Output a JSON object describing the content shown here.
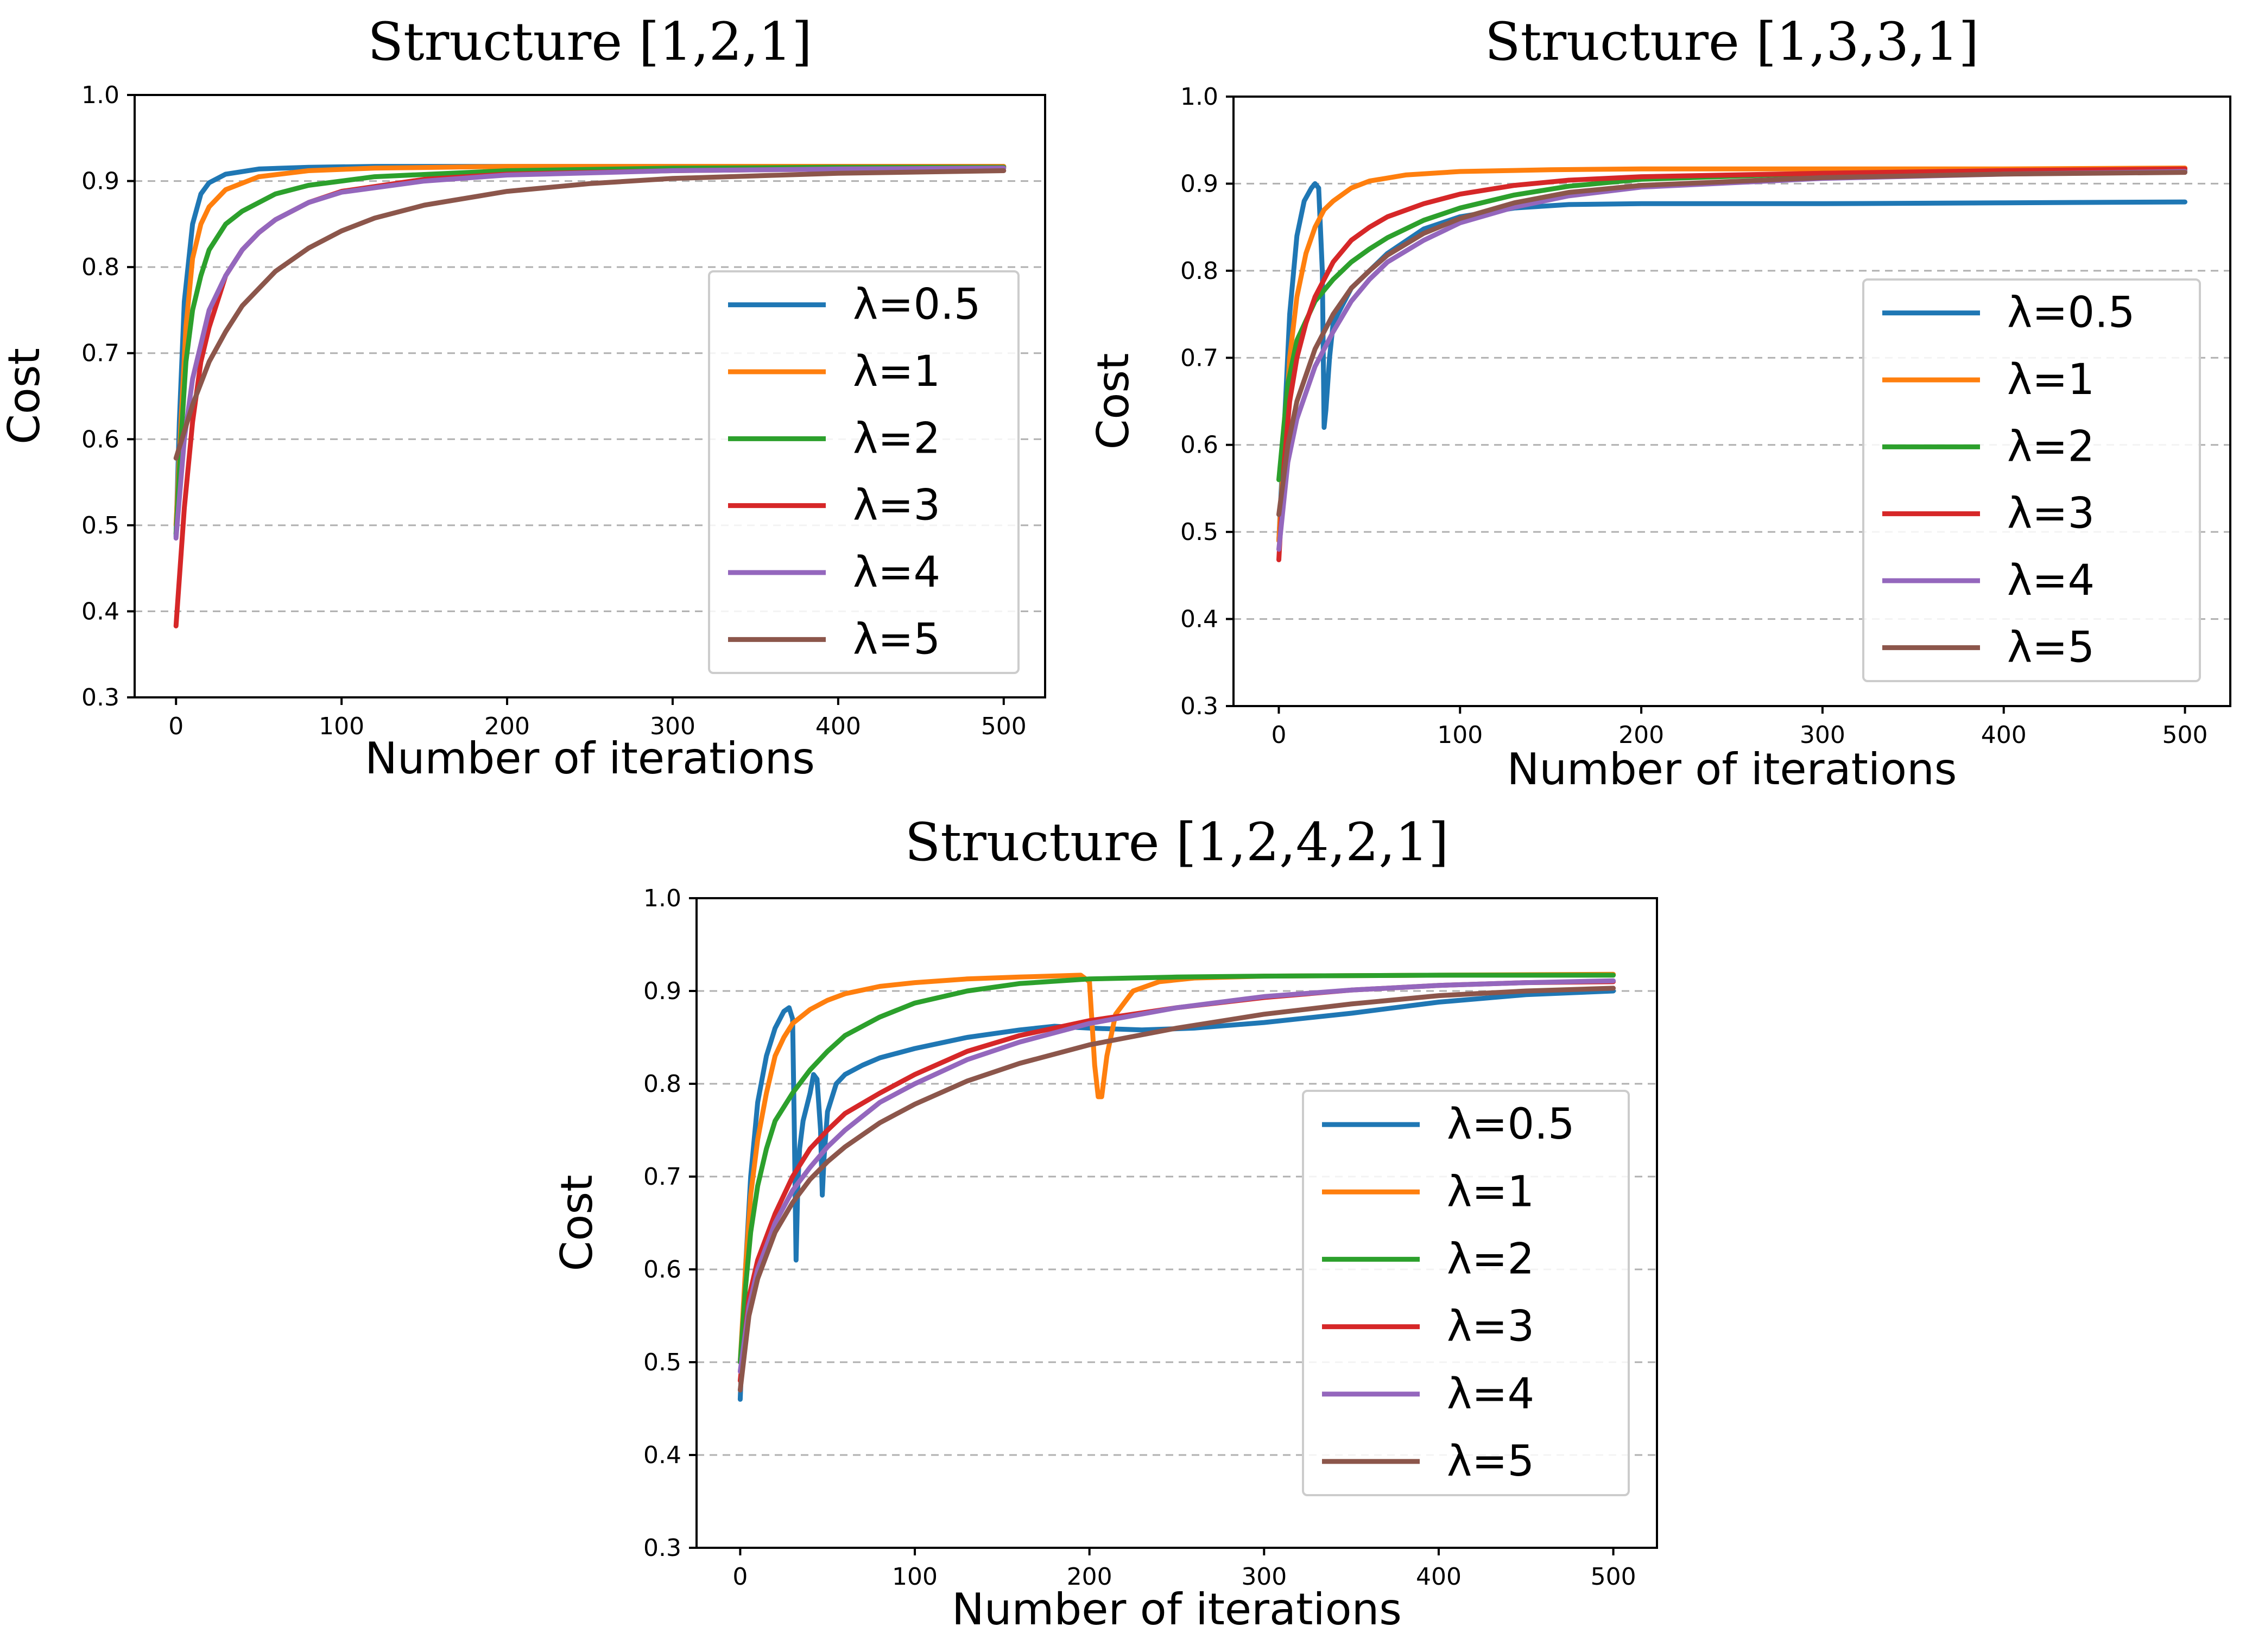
{
  "chart_data": [
    {
      "type": "line",
      "title": "Structure [1,2,1]",
      "xlabel": "Number of iterations",
      "ylabel": "Cost",
      "xlim": [
        -25,
        525
      ],
      "ylim": [
        0.3,
        1.0
      ],
      "xticks": [
        "0",
        "100",
        "200",
        "300",
        "400",
        "500"
      ],
      "yticks": [
        "0.3",
        "0.4",
        "0.5",
        "0.6",
        "0.7",
        "0.8",
        "0.9",
        "1.0"
      ],
      "grid": "horizontal-dashed",
      "legend_position": "center-right",
      "series": [
        {
          "name": "λ=0.5",
          "color": "#1f77b4",
          "x": [
            0,
            2,
            5,
            10,
            15,
            20,
            30,
            50,
            80,
            120,
            200,
            300,
            400,
            500
          ],
          "y": [
            0.487,
            0.62,
            0.76,
            0.85,
            0.885,
            0.898,
            0.908,
            0.914,
            0.916,
            0.917,
            0.917,
            0.917,
            0.917,
            0.917
          ]
        },
        {
          "name": "λ=1",
          "color": "#ff7f0e",
          "x": [
            0,
            3,
            6,
            10,
            15,
            20,
            30,
            50,
            80,
            120,
            200,
            300,
            400,
            500
          ],
          "y": [
            0.5,
            0.62,
            0.73,
            0.81,
            0.85,
            0.87,
            0.89,
            0.905,
            0.912,
            0.915,
            0.917,
            0.917,
            0.917,
            0.917
          ]
        },
        {
          "name": "λ=2",
          "color": "#2ca02c",
          "x": [
            0,
            3,
            6,
            10,
            15,
            20,
            30,
            40,
            60,
            80,
            120,
            200,
            300,
            400,
            500
          ],
          "y": [
            0.49,
            0.6,
            0.69,
            0.75,
            0.79,
            0.82,
            0.85,
            0.865,
            0.885,
            0.895,
            0.905,
            0.912,
            0.915,
            0.916,
            0.916
          ]
        },
        {
          "name": "λ=3",
          "color": "#d62728",
          "x": [
            0,
            5,
            10,
            15,
            20,
            30,
            40,
            50,
            60,
            80,
            100,
            150,
            200,
            300,
            400,
            500
          ],
          "y": [
            0.383,
            0.52,
            0.62,
            0.69,
            0.73,
            0.79,
            0.82,
            0.84,
            0.855,
            0.875,
            0.888,
            0.902,
            0.908,
            0.912,
            0.914,
            0.915
          ]
        },
        {
          "name": "λ=4",
          "color": "#9467bd",
          "x": [
            0,
            5,
            10,
            20,
            30,
            40,
            50,
            60,
            80,
            100,
            150,
            200,
            300,
            400,
            500
          ],
          "y": [
            0.485,
            0.6,
            0.67,
            0.75,
            0.79,
            0.82,
            0.84,
            0.855,
            0.875,
            0.887,
            0.9,
            0.907,
            0.912,
            0.914,
            0.915
          ]
        },
        {
          "name": "λ=5",
          "color": "#8c564b",
          "x": [
            0,
            10,
            20,
            30,
            40,
            50,
            60,
            80,
            100,
            120,
            150,
            200,
            250,
            300,
            400,
            500
          ],
          "y": [
            0.578,
            0.64,
            0.69,
            0.725,
            0.755,
            0.775,
            0.795,
            0.822,
            0.842,
            0.857,
            0.872,
            0.888,
            0.897,
            0.903,
            0.909,
            0.912
          ]
        }
      ]
    },
    {
      "type": "line",
      "title": "Structure [1,3,3,1]",
      "xlabel": "Number of iterations",
      "ylabel": "Cost",
      "xlim": [
        -25,
        525
      ],
      "ylim": [
        0.3,
        1.0
      ],
      "xticks": [
        "0",
        "100",
        "200",
        "300",
        "400",
        "500"
      ],
      "yticks": [
        "0.3",
        "0.4",
        "0.5",
        "0.6",
        "0.7",
        "0.8",
        "0.9",
        "1.0"
      ],
      "grid": "horizontal-dashed",
      "legend_position": "center-right",
      "series": [
        {
          "name": "λ=0.5",
          "color": "#1f77b4",
          "x": [
            0,
            3,
            6,
            10,
            14,
            18,
            20,
            22,
            24,
            25,
            26,
            28,
            30,
            35,
            40,
            50,
            60,
            80,
            100,
            130,
            160,
            200,
            300,
            400,
            500
          ],
          "y": [
            0.49,
            0.62,
            0.75,
            0.84,
            0.88,
            0.895,
            0.9,
            0.895,
            0.8,
            0.62,
            0.64,
            0.7,
            0.74,
            0.76,
            0.78,
            0.8,
            0.82,
            0.848,
            0.862,
            0.872,
            0.876,
            0.877,
            0.877,
            0.878,
            0.879
          ]
        },
        {
          "name": "λ=1",
          "color": "#ff7f0e",
          "x": [
            0,
            3,
            6,
            10,
            15,
            20,
            25,
            30,
            40,
            50,
            70,
            100,
            150,
            200,
            300,
            400,
            500
          ],
          "y": [
            0.49,
            0.6,
            0.7,
            0.77,
            0.82,
            0.85,
            0.87,
            0.88,
            0.895,
            0.903,
            0.91,
            0.914,
            0.916,
            0.917,
            0.917,
            0.917,
            0.918
          ]
        },
        {
          "name": "λ=2",
          "color": "#2ca02c",
          "x": [
            0,
            5,
            10,
            20,
            30,
            40,
            50,
            60,
            80,
            100,
            130,
            160,
            200,
            300,
            400,
            500
          ],
          "y": [
            0.56,
            0.67,
            0.72,
            0.765,
            0.79,
            0.81,
            0.825,
            0.838,
            0.858,
            0.872,
            0.887,
            0.897,
            0.905,
            0.912,
            0.914,
            0.915
          ]
        },
        {
          "name": "λ=3",
          "color": "#d62728",
          "x": [
            0,
            3,
            6,
            10,
            15,
            20,
            30,
            40,
            50,
            60,
            80,
            100,
            130,
            160,
            200,
            300,
            400,
            500
          ],
          "y": [
            0.468,
            0.58,
            0.65,
            0.7,
            0.74,
            0.77,
            0.81,
            0.835,
            0.85,
            0.862,
            0.877,
            0.888,
            0.898,
            0.904,
            0.908,
            0.912,
            0.915,
            0.917
          ]
        },
        {
          "name": "λ=4",
          "color": "#9467bd",
          "x": [
            0,
            5,
            10,
            20,
            30,
            40,
            50,
            60,
            80,
            100,
            130,
            160,
            200,
            300,
            400,
            500
          ],
          "y": [
            0.48,
            0.58,
            0.63,
            0.69,
            0.73,
            0.765,
            0.79,
            0.81,
            0.835,
            0.855,
            0.873,
            0.886,
            0.896,
            0.906,
            0.911,
            0.914
          ]
        },
        {
          "name": "λ=5",
          "color": "#8c564b",
          "x": [
            0,
            5,
            10,
            20,
            30,
            40,
            50,
            60,
            80,
            100,
            130,
            160,
            200,
            300,
            400,
            500
          ],
          "y": [
            0.52,
            0.6,
            0.65,
            0.71,
            0.75,
            0.78,
            0.8,
            0.818,
            0.843,
            0.86,
            0.878,
            0.89,
            0.898,
            0.907,
            0.911,
            0.913
          ]
        }
      ]
    },
    {
      "type": "line",
      "title": "Structure [1,2,4,2,1]",
      "xlabel": "Number of iterations",
      "ylabel": "Cost",
      "xlim": [
        -25,
        525
      ],
      "ylim": [
        0.3,
        1.0
      ],
      "xticks": [
        "0",
        "100",
        "200",
        "300",
        "400",
        "500"
      ],
      "yticks": [
        "0.3",
        "0.4",
        "0.5",
        "0.6",
        "0.7",
        "0.8",
        "0.9",
        "1.0"
      ],
      "grid": "horizontal-dashed",
      "legend_position": "center-right",
      "series": [
        {
          "name": "λ=0.5",
          "color": "#1f77b4",
          "x": [
            0,
            3,
            6,
            10,
            15,
            20,
            25,
            28,
            30,
            31,
            32,
            33,
            34,
            36,
            40,
            42,
            44,
            46,
            47,
            48,
            50,
            55,
            60,
            70,
            80,
            100,
            130,
            160,
            180,
            200,
            230,
            260,
            300,
            350,
            400,
            450,
            500
          ],
          "y": [
            0.46,
            0.6,
            0.7,
            0.78,
            0.83,
            0.86,
            0.878,
            0.882,
            0.87,
            0.75,
            0.61,
            0.69,
            0.73,
            0.76,
            0.79,
            0.81,
            0.805,
            0.75,
            0.68,
            0.72,
            0.77,
            0.8,
            0.81,
            0.82,
            0.828,
            0.838,
            0.85,
            0.858,
            0.862,
            0.86,
            0.858,
            0.86,
            0.866,
            0.876,
            0.888,
            0.896,
            0.9
          ]
        },
        {
          "name": "λ=1",
          "color": "#ff7f0e",
          "x": [
            0,
            3,
            6,
            10,
            15,
            20,
            25,
            30,
            40,
            50,
            60,
            80,
            100,
            130,
            160,
            195,
            200,
            203,
            205,
            207,
            210,
            215,
            225,
            240,
            260,
            300,
            400,
            500
          ],
          "y": [
            0.5,
            0.6,
            0.68,
            0.74,
            0.79,
            0.83,
            0.85,
            0.865,
            0.88,
            0.89,
            0.897,
            0.905,
            0.909,
            0.913,
            0.915,
            0.917,
            0.91,
            0.82,
            0.786,
            0.786,
            0.83,
            0.875,
            0.9,
            0.91,
            0.914,
            0.916,
            0.917,
            0.918
          ]
        },
        {
          "name": "λ=2",
          "color": "#2ca02c",
          "x": [
            0,
            3,
            6,
            10,
            15,
            20,
            30,
            40,
            50,
            60,
            80,
            100,
            130,
            160,
            200,
            250,
            300,
            400,
            500
          ],
          "y": [
            0.5,
            0.58,
            0.64,
            0.69,
            0.73,
            0.76,
            0.79,
            0.815,
            0.835,
            0.852,
            0.872,
            0.887,
            0.9,
            0.908,
            0.913,
            0.915,
            0.916,
            0.917,
            0.917
          ]
        },
        {
          "name": "λ=3",
          "color": "#d62728",
          "x": [
            0,
            5,
            10,
            20,
            30,
            40,
            50,
            60,
            80,
            100,
            130,
            160,
            200,
            250,
            300,
            350,
            400,
            450,
            500
          ],
          "y": [
            0.48,
            0.57,
            0.61,
            0.66,
            0.7,
            0.73,
            0.75,
            0.768,
            0.79,
            0.81,
            0.835,
            0.852,
            0.868,
            0.882,
            0.893,
            0.901,
            0.906,
            0.909,
            0.91
          ]
        },
        {
          "name": "λ=4",
          "color": "#9467bd",
          "x": [
            0,
            5,
            10,
            20,
            30,
            40,
            50,
            60,
            80,
            100,
            130,
            160,
            200,
            250,
            300,
            350,
            400,
            450,
            500
          ],
          "y": [
            0.49,
            0.56,
            0.6,
            0.65,
            0.685,
            0.71,
            0.732,
            0.75,
            0.78,
            0.8,
            0.826,
            0.845,
            0.865,
            0.882,
            0.894,
            0.901,
            0.906,
            0.909,
            0.911
          ]
        },
        {
          "name": "λ=5",
          "color": "#8c564b",
          "x": [
            0,
            5,
            10,
            20,
            30,
            40,
            50,
            60,
            80,
            100,
            130,
            160,
            200,
            250,
            300,
            350,
            400,
            450,
            500
          ],
          "y": [
            0.47,
            0.55,
            0.59,
            0.64,
            0.672,
            0.697,
            0.716,
            0.732,
            0.758,
            0.778,
            0.803,
            0.822,
            0.842,
            0.86,
            0.875,
            0.886,
            0.895,
            0.9,
            0.903
          ]
        }
      ]
    }
  ]
}
